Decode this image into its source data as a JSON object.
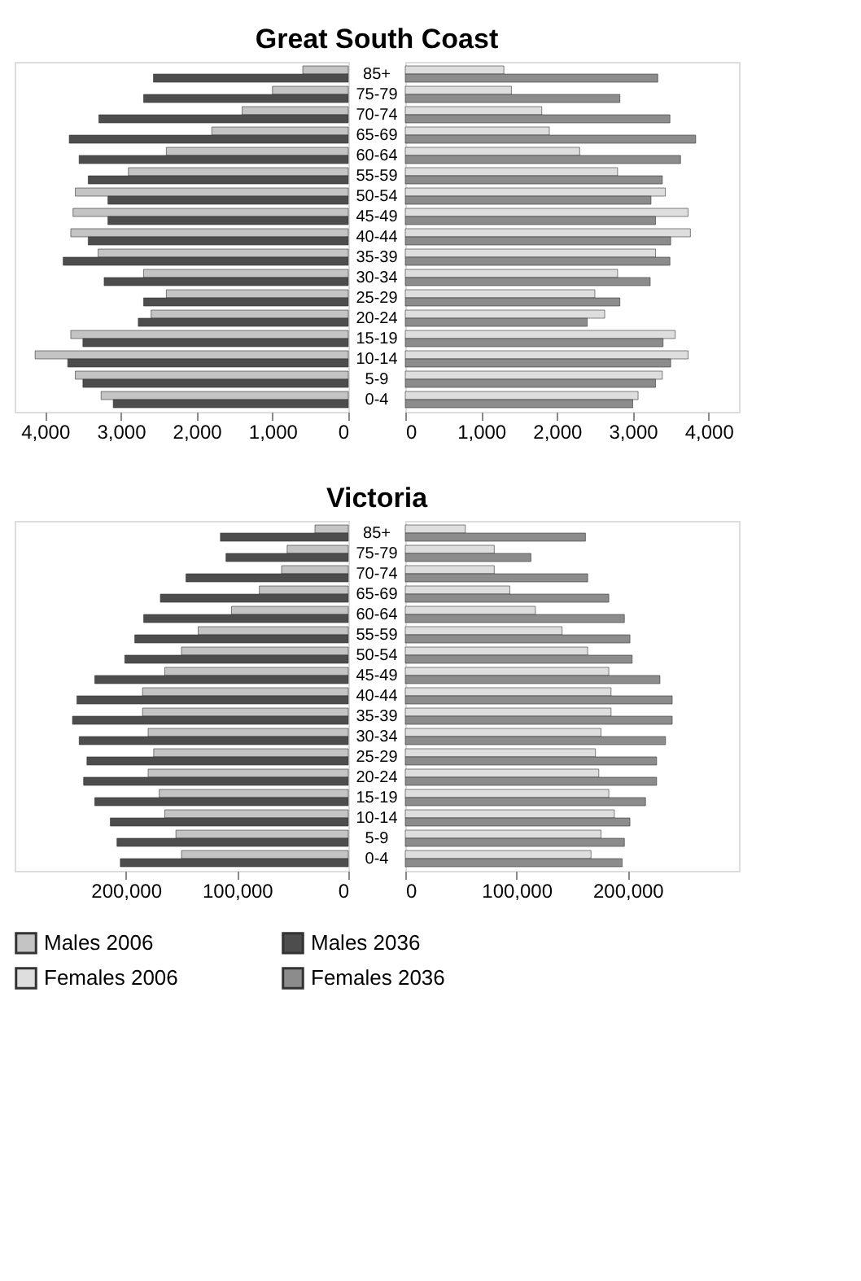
{
  "chart_data": [
    {
      "type": "bar",
      "orientation": "horizontal",
      "title": "Great South Coast",
      "categories": [
        "85+",
        "75-79",
        "70-74",
        "65-69",
        "60-64",
        "55-59",
        "50-54",
        "45-49",
        "40-44",
        "35-39",
        "30-34",
        "25-29",
        "20-24",
        "15-19",
        "10-14",
        "5-9",
        "0-4"
      ],
      "series": [
        {
          "name": "Males 2006",
          "color": "#c4c4c4",
          "values": [
            600,
            1000,
            1400,
            1800,
            2400,
            2900,
            3600,
            3630,
            3660,
            3300,
            2700,
            2400,
            2600,
            3660,
            4130,
            3600,
            3260
          ]
        },
        {
          "name": "Males 2036",
          "color": "#4d4d4d",
          "values": [
            2570,
            2700,
            3290,
            3680,
            3550,
            3430,
            3170,
            3170,
            3430,
            3760,
            3220,
            2700,
            2770,
            3500,
            3700,
            3500,
            3100
          ]
        }
      ],
      "xlim": [
        4400,
        0
      ],
      "xticks": [
        {
          "value": 4000,
          "label": "4,000"
        },
        {
          "value": 3000,
          "label": "3,000"
        },
        {
          "value": 2000,
          "label": "2,000"
        },
        {
          "value": 1000,
          "label": "1,000"
        },
        0
      ],
      "tick_labels": "x",
      "legend": "bottom"
    },
    {
      "type": "bar",
      "orientation": "horizontal",
      "categories": [
        "85+",
        "75-79",
        "70-74",
        "65-69",
        "60-64",
        "55-59",
        "50-54",
        "45-49",
        "40-44",
        "35-39",
        "30-34",
        "25-29",
        "20-24",
        "15-19",
        "10-14",
        "5-9",
        "0-4"
      ],
      "series": [
        {
          "name": "Females 2006",
          "color": "#dedede",
          "values": [
            1300,
            1400,
            1800,
            1900,
            2300,
            2800,
            3430,
            3730,
            3760,
            3300,
            2800,
            2500,
            2630,
            3560,
            3730,
            3390,
            3070
          ]
        },
        {
          "name": "Females 2036",
          "color": "#8c8c8c",
          "values": [
            3330,
            2830,
            3490,
            3830,
            3630,
            3390,
            3240,
            3300,
            3500,
            3490,
            3230,
            2830,
            2400,
            3400,
            3500,
            3300,
            3000
          ]
        }
      ],
      "xlim": [
        0,
        4400
      ],
      "xticks": [
        0,
        {
          "value": 1000,
          "label": "1,000"
        },
        {
          "value": 2000,
          "label": "2,000"
        },
        {
          "value": 3000,
          "label": "3,000"
        },
        {
          "value": 4000,
          "label": "4,000"
        }
      ],
      "legend": "bottom"
    },
    {
      "type": "bar",
      "orientation": "horizontal",
      "title": "Victoria",
      "categories": [
        "85+",
        "75-79",
        "70-74",
        "65-69",
        "60-64",
        "55-59",
        "50-54",
        "45-49",
        "40-44",
        "35-39",
        "30-34",
        "25-29",
        "20-24",
        "15-19",
        "10-14",
        "5-9",
        "0-4"
      ],
      "series": [
        {
          "name": "Males 2006",
          "color": "#c4c4c4",
          "values": [
            30000,
            55000,
            60000,
            80000,
            105000,
            135000,
            150000,
            165000,
            185000,
            185000,
            180000,
            175000,
            180000,
            170000,
            165000,
            155000,
            150000
          ]
        },
        {
          "name": "Males 2036",
          "color": "#4d4d4d",
          "values": [
            115000,
            110000,
            146000,
            169000,
            184000,
            192000,
            201000,
            228000,
            244000,
            248000,
            242000,
            235000,
            238000,
            228000,
            214000,
            208000,
            205000
          ]
        }
      ],
      "xlim": [
        300000,
        0
      ],
      "xticks": [
        {
          "value": 200000,
          "label": "200,000"
        },
        {
          "value": 100000,
          "label": "100,000"
        },
        0
      ],
      "tick_labels": "x",
      "legend": "bottom"
    },
    {
      "type": "bar",
      "orientation": "horizontal",
      "categories": [
        "85+",
        "75-79",
        "70-74",
        "65-69",
        "60-64",
        "55-59",
        "50-54",
        "45-49",
        "40-44",
        "35-39",
        "30-34",
        "25-29",
        "20-24",
        "15-19",
        "10-14",
        "5-9",
        "0-4"
      ],
      "series": [
        {
          "name": "Females 2006",
          "color": "#dedede",
          "values": [
            54000,
            80000,
            80000,
            94000,
            117000,
            141000,
            164000,
            183000,
            185000,
            185000,
            176000,
            171000,
            174000,
            183000,
            188000,
            176000,
            167000
          ]
        },
        {
          "name": "Females 2036",
          "color": "#8c8c8c",
          "values": [
            162000,
            113000,
            164000,
            183000,
            197000,
            202000,
            204000,
            229000,
            240000,
            240000,
            234000,
            226000,
            226000,
            216000,
            202000,
            197000,
            195000
          ]
        }
      ],
      "xlim": [
        0,
        300000
      ],
      "xticks": [
        0,
        {
          "value": 100000,
          "label": "100,000"
        },
        {
          "value": 200000,
          "label": "200,000"
        }
      ],
      "legend": "bottom"
    }
  ]
}
